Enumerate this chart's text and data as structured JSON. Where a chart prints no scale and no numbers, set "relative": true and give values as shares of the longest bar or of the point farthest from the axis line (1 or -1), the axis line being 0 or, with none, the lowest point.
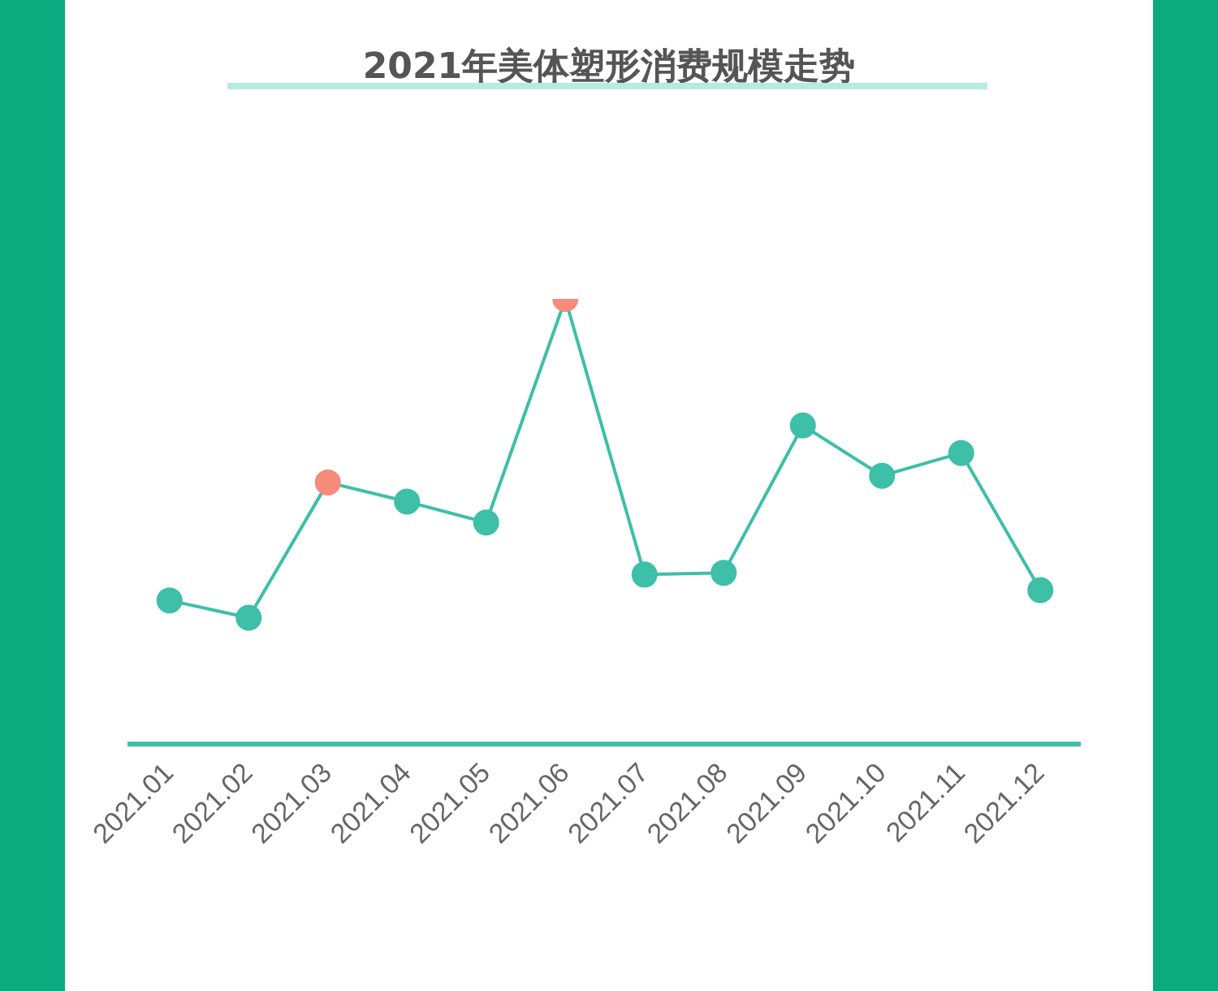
{
  "chart_data": {
    "type": "line",
    "title": "2021年美体塑形消费规模走势",
    "relative": true,
    "categories": [
      "2021.01",
      "2021.02",
      "2021.03",
      "2021.04",
      "2021.05",
      "2021.06",
      "2021.07",
      "2021.08",
      "2021.09",
      "2021.10",
      "2021.11",
      "2021.12"
    ],
    "series": [
      {
        "color": "#3dbfa8",
        "values": [
          0.323,
          0.284,
          0.588,
          0.545,
          0.498,
          1,
          0.381,
          0.385,
          0.716,
          0.603,
          0.654,
          0.346
        ],
        "colors": [
          "#3dbfa8",
          "#3dbfa8",
          "#f78b7a",
          "#3dbfa8",
          "#3dbfa8",
          "#f78b7a",
          "#3dbfa8",
          "#3dbfa8",
          "#3dbfa8",
          "#3dbfa8",
          "#3dbfa8",
          "#3dbfa8"
        ]
      }
    ],
    "marker": "circle",
    "line_style": "solid",
    "legend": false
  }
}
